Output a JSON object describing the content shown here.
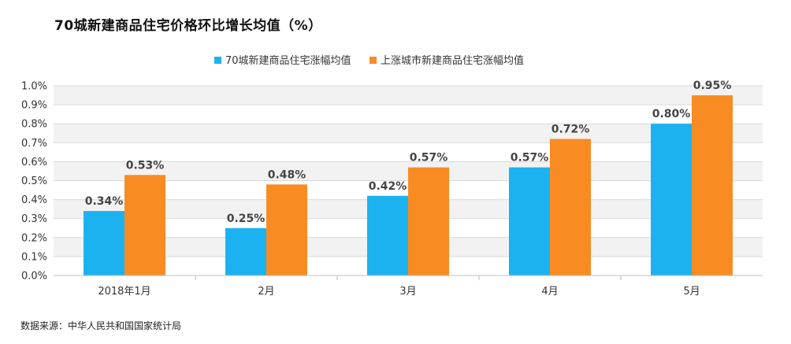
{
  "title": "70城新建商品住宅价格环比增长均值（%）",
  "source": "数据来源：中华人民共和国国家统计局",
  "colors": {
    "series1": "#1cb2ef",
    "series2": "#f88c23",
    "grid": "#d9d9d9",
    "band": "#f2f2f2"
  },
  "chart_data": {
    "type": "bar",
    "title": "70城新建商品住宅价格环比增长均值（%）",
    "categories": [
      "2018年1月",
      "2月",
      "3月",
      "4月",
      "5月"
    ],
    "series": [
      {
        "name": "70城新建商品住宅涨幅均值",
        "values": [
          0.34,
          0.25,
          0.42,
          0.57,
          0.8
        ],
        "labels": [
          "0.34%",
          "0.25%",
          "0.42%",
          "0.57%",
          "0.80%"
        ]
      },
      {
        "name": "上涨城市新建商品住宅涨幅均值",
        "values": [
          0.53,
          0.48,
          0.57,
          0.72,
          0.95
        ],
        "labels": [
          "0.53%",
          "0.48%",
          "0.57%",
          "0.72%",
          "0.95%"
        ]
      }
    ],
    "yticks": [
      "0.0%",
      "0.1%",
      "0.2%",
      "0.3%",
      "0.4%",
      "0.5%",
      "0.6%",
      "0.7%",
      "0.8%",
      "0.9%",
      "1.0%"
    ],
    "ylim": [
      0,
      1.0
    ],
    "xlabel": "",
    "ylabel": "",
    "grid": true,
    "legend_position": "top-center"
  }
}
